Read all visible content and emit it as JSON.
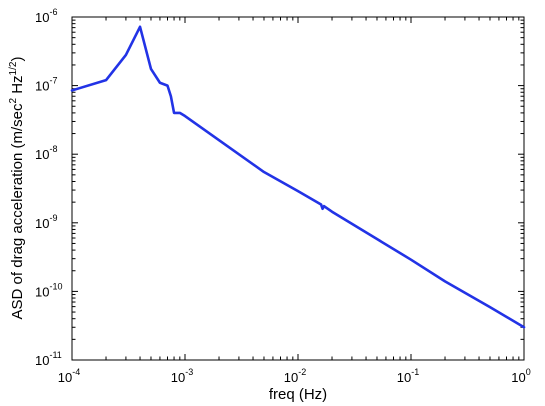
{
  "chart_data": {
    "type": "line",
    "xscale": "log",
    "yscale": "log",
    "xlim": [
      0.0001,
      1
    ],
    "ylim": [
      1e-11,
      1e-06
    ],
    "xlabel": "freq (Hz)",
    "ylabel": {
      "main": "ASD of drag acceleration (m/sec",
      "sup1": "2",
      "mid": " Hz",
      "sup2": "1/2",
      "end": ")"
    },
    "x_ticks": [
      {
        "base": "10",
        "exp": "-4"
      },
      {
        "base": "10",
        "exp": "-3"
      },
      {
        "base": "10",
        "exp": "-2"
      },
      {
        "base": "10",
        "exp": "-1"
      },
      {
        "base": "10",
        "exp": "0"
      }
    ],
    "y_ticks": [
      {
        "base": "10",
        "exp": "-11"
      },
      {
        "base": "10",
        "exp": "-10"
      },
      {
        "base": "10",
        "exp": "-9"
      },
      {
        "base": "10",
        "exp": "-8"
      },
      {
        "base": "10",
        "exp": "-7"
      },
      {
        "base": "10",
        "exp": "-6"
      }
    ],
    "grid": false,
    "legend": "none",
    "series": [
      {
        "color": "#2233e6",
        "x": [
          0.0001,
          0.0002,
          0.0003,
          0.0004,
          0.0005,
          0.0006,
          0.0007,
          0.00075,
          0.0008,
          0.0009,
          0.001,
          0.002,
          0.005,
          0.01,
          0.016,
          0.0165,
          0.017,
          0.02,
          0.05,
          0.1,
          0.2,
          0.5,
          1
        ],
        "y": [
          8.5e-08,
          1.2e-07,
          2.8e-07,
          7.2e-07,
          1.75e-07,
          1.1e-07,
          1e-07,
          7e-08,
          4e-08,
          4e-08,
          3.6e-08,
          1.6e-08,
          5.5e-09,
          2.9e-09,
          1.85e-09,
          1.6e-09,
          1.75e-09,
          1.45e-09,
          5.8e-10,
          2.9e-10,
          1.4e-10,
          5.9e-11,
          3e-11
        ]
      }
    ]
  }
}
